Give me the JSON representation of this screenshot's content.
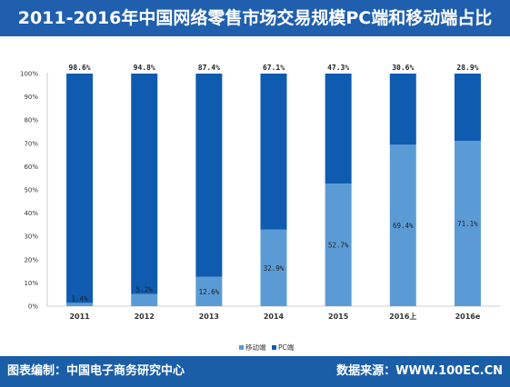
{
  "header": {
    "title": "2011-2016年中国网络零售市场交易规模PC端和移动端占比"
  },
  "footer": {
    "left": "图表编制：中国电子商务研究中心",
    "right": "数据来源：WWW.100EC.CN"
  },
  "colors": {
    "header_bg": "#1f5fae",
    "footer_bg": "#1a5ea8",
    "mobile": "#5b9bd5",
    "pc": "#0f5bb0"
  },
  "chart_data": {
    "type": "bar",
    "stacked": true,
    "percent": true,
    "categories": [
      "2011",
      "2012",
      "2013",
      "2014",
      "2015",
      "2016上",
      "2016e"
    ],
    "series": [
      {
        "name": "移动端",
        "values": [
          1.4,
          5.2,
          12.6,
          32.9,
          52.7,
          69.4,
          71.1
        ],
        "labels": [
          "1.4%",
          "5.2%",
          "12.6%",
          "32.9%",
          "52.7%",
          "69.4%",
          "71.1%"
        ],
        "color": "#5b9bd5"
      },
      {
        "name": "PC端",
        "values": [
          98.6,
          94.8,
          87.4,
          67.1,
          47.3,
          30.6,
          28.9
        ],
        "labels": [
          "98.6%",
          "94.8%",
          "87.4%",
          "67.1%",
          "47.3%",
          "30.6%",
          "28.9%"
        ],
        "color": "#0f5bb0"
      }
    ],
    "yticks": [
      "0%",
      "10%",
      "20%",
      "30%",
      "40%",
      "50%",
      "60%",
      "70%",
      "80%",
      "90%",
      "100%"
    ],
    "ylim": [
      0,
      100
    ],
    "legend": "bottom-center",
    "grid": false
  }
}
